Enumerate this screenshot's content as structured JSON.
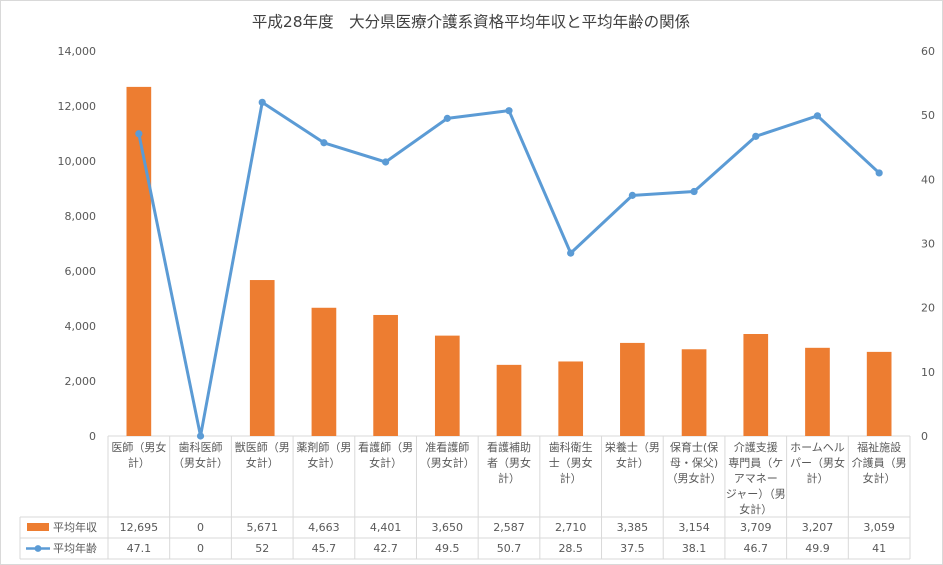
{
  "chart_data": {
    "type": "bar+line",
    "title": "平成28年度　大分県医療介護系資格平均年収と平均年齢の関係",
    "categories": [
      [
        "医師（男女",
        "計）"
      ],
      [
        "歯科医師",
        "（男女計）"
      ],
      [
        "獣医師（男",
        "女計）"
      ],
      [
        "薬剤師（男",
        "女計）"
      ],
      [
        "看護師（男",
        "女計）"
      ],
      [
        "准看護師",
        "（男女計）"
      ],
      [
        "看護補助",
        "者（男女",
        "計）"
      ],
      [
        "歯科衛生",
        "士（男女",
        "計）"
      ],
      [
        "栄養士（男",
        "女計）"
      ],
      [
        "保育士(保",
        "母・保父)",
        "（男女計）"
      ],
      [
        "介護支援",
        "専門員（ケ",
        "アマネー",
        "ジャー）（男",
        "女計）"
      ],
      [
        "ホームヘル",
        "パー（男女",
        "計）"
      ],
      [
        "福祉施設",
        "介護員（男",
        "女計）"
      ]
    ],
    "y_left": {
      "min": 0,
      "max": 14000,
      "step": 2000,
      "tick_labels": [
        "0",
        "2,000",
        "4,000",
        "6,000",
        "8,000",
        "10,000",
        "12,000",
        "14,000"
      ]
    },
    "y_right": {
      "min": 0,
      "max": 60,
      "step": 10,
      "tick_labels": [
        "0",
        "10",
        "20",
        "30",
        "40",
        "50",
        "60"
      ]
    },
    "series": [
      {
        "name": "平均年収",
        "kind": "bar",
        "axis": "left",
        "color": "#ED7D31",
        "values": [
          12695,
          0,
          5671,
          4663,
          4401,
          3650,
          2587,
          2710,
          3385,
          3154,
          3709,
          3207,
          3059
        ],
        "labels": [
          "12,695",
          "0",
          "5,671",
          "4,663",
          "4,401",
          "3,650",
          "2,587",
          "2,710",
          "3,385",
          "3,154",
          "3,709",
          "3,207",
          "3,059"
        ]
      },
      {
        "name": "平均年齢",
        "kind": "line",
        "axis": "right",
        "color": "#5B9BD5",
        "values": [
          47.1,
          0,
          52,
          45.7,
          42.7,
          49.5,
          50.7,
          28.5,
          37.5,
          38.1,
          46.7,
          49.9,
          41
        ],
        "labels": [
          "47.1",
          "0",
          "52",
          "45.7",
          "42.7",
          "49.5",
          "50.7",
          "28.5",
          "37.5",
          "38.1",
          "46.7",
          "49.9",
          "41"
        ]
      }
    ],
    "legend": "data-table",
    "grid": false
  }
}
